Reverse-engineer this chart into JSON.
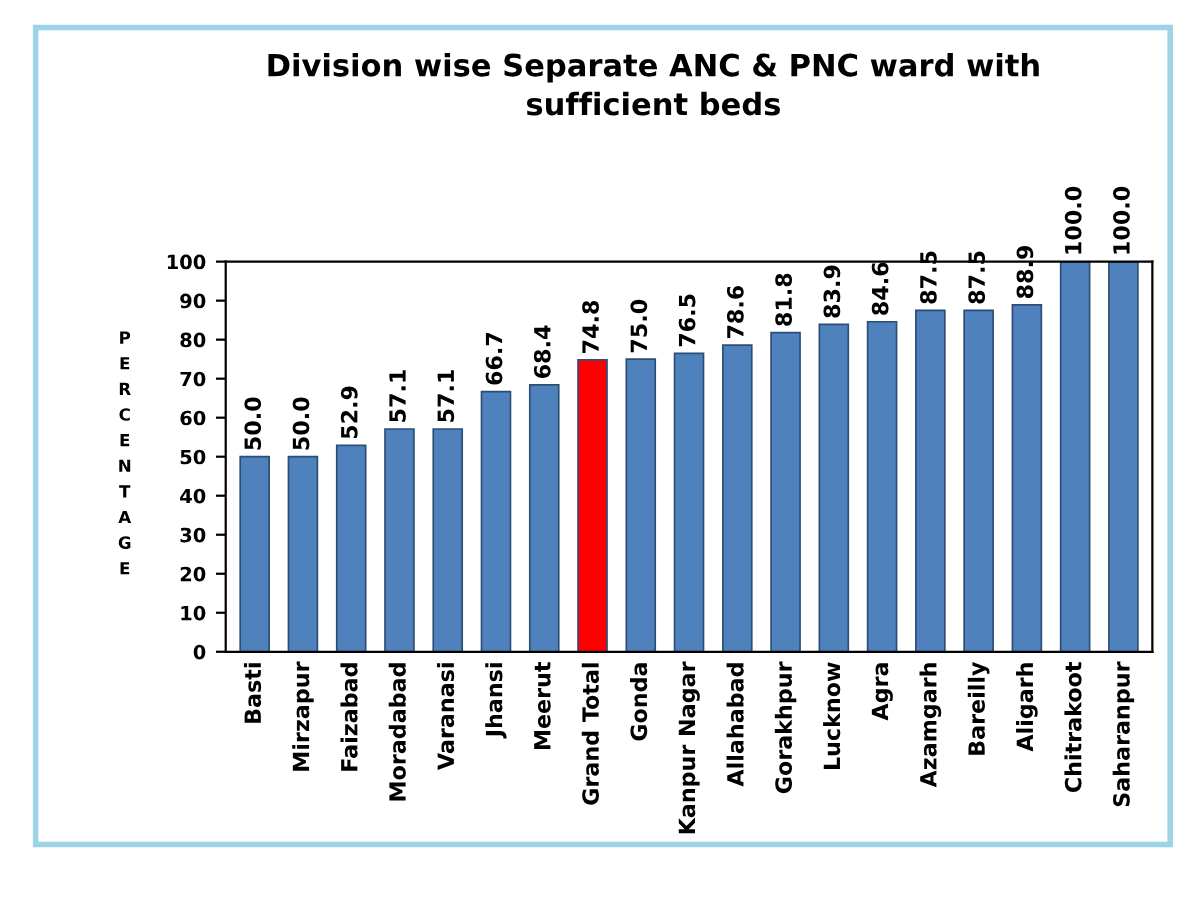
{
  "chart_data": {
    "type": "bar",
    "title": "Division wise Separate ANC & PNC ward with\nsufficient beds",
    "ylabel": "PERCENTAGE",
    "categories": [
      "Basti",
      "Mirzapur",
      "Faizabad",
      "Moradabad",
      "Varanasi",
      "Jhansi",
      "Meerut",
      "Grand Total",
      "Gonda",
      "Kanpur Nagar",
      "Allahabad",
      "Gorakhpur",
      "Lucknow",
      "Agra",
      "Azamgarh",
      "Bareilly",
      "Aligarh",
      "Chitrakoot",
      "Saharanpur"
    ],
    "values": [
      50.0,
      50.0,
      52.9,
      57.1,
      57.1,
      66.7,
      68.4,
      74.8,
      75.0,
      76.5,
      78.6,
      81.8,
      83.9,
      84.6,
      87.5,
      87.5,
      88.9,
      100.0,
      100.0
    ],
    "value_labels": [
      "50.0",
      "50.0",
      "52.9",
      "57.1",
      "57.1",
      "66.7",
      "68.4",
      "74.8",
      "75.0",
      "76.5",
      "78.6",
      "81.8",
      "83.9",
      "84.6",
      "87.5",
      "87.5",
      "88.9",
      "100.0",
      "100.0"
    ],
    "colors": [
      "#4f81bd",
      "#4f81bd",
      "#4f81bd",
      "#4f81bd",
      "#4f81bd",
      "#4f81bd",
      "#4f81bd",
      "#ff0000",
      "#4f81bd",
      "#4f81bd",
      "#4f81bd",
      "#4f81bd",
      "#4f81bd",
      "#4f81bd",
      "#4f81bd",
      "#4f81bd",
      "#4f81bd",
      "#4f81bd",
      "#4f81bd"
    ],
    "ylim": [
      0,
      100
    ],
    "yticks": [
      0,
      10,
      20,
      30,
      40,
      50,
      60,
      70,
      80,
      90,
      100
    ],
    "grid": false,
    "legend": false
  }
}
